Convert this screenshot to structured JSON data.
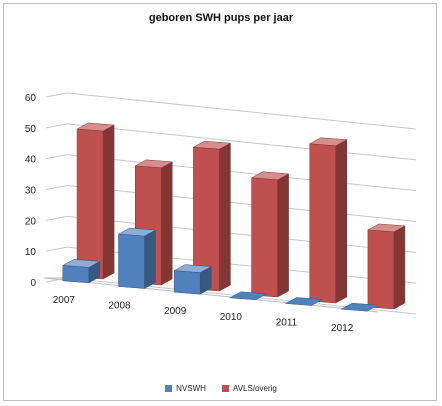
{
  "chart_data": {
    "type": "bar",
    "title": "geboren SWH pups per jaar",
    "categories": [
      "2007",
      "2008",
      "2009",
      "2010",
      "2011",
      "2012"
    ],
    "series": [
      {
        "name": "NVSWH",
        "color": "#4f81bd",
        "values": [
          5,
          17,
          7,
          0,
          0,
          0
        ]
      },
      {
        "name": "AVLS/overig",
        "color": "#c0504d",
        "values": [
          48,
          38,
          46,
          38,
          51,
          25
        ]
      }
    ],
    "ylim": [
      0,
      60
    ],
    "yticks": [
      "0",
      "10",
      "20",
      "30",
      "40",
      "50",
      "60"
    ],
    "legend_position": "bottom",
    "grid": true,
    "style": "3d-column"
  }
}
